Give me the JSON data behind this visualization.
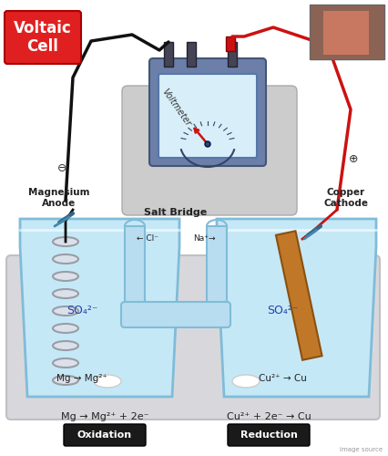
{
  "title": "Voltaic\nCell",
  "title_bg": "#e02020",
  "title_color": "#ffffff",
  "bg_color": "#ffffff",
  "platform_color": "#d8d8dc",
  "platform_edge": "#c0c0c4",
  "left_beaker_fill": "#c5e8f7",
  "right_beaker_fill": "#c5e8f7",
  "beaker_edge": "#80bcd8",
  "salt_bridge_fill": "#b8ddf0",
  "salt_bridge_edge": "#80bcd8",
  "voltmeter_platform": "#cccccc",
  "voltmeter_body": "#6b7fa8",
  "voltmeter_face_bg": "#d8eef8",
  "voltmeter_face_edge": "#5577aa",
  "wire_black": "#111111",
  "wire_red": "#cc1111",
  "copper_color": "#c07828",
  "copper_edge": "#8a5010",
  "mg_coil_fill": "#e0e0e8",
  "mg_coil_edge": "#909098",
  "needle_color": "#cc1111",
  "needle_pivot": "#224488",
  "oxidation_box": "#1a1a1a",
  "reduction_box": "#1a1a1a",
  "text_dark": "#222222",
  "text_blue": "#2244aa",
  "webcam_bg": "#8b6355",
  "image_src_color": "#999999",
  "left_reaction": "Mg → Mg²⁺ + 2e⁻",
  "right_reaction": "Cu²⁺ + 2e⁻ → Cu",
  "oxidation_label": "Oxidation",
  "reduction_label": "Reduction",
  "so4_label": "SO₄²⁻",
  "mg_arrow": "Mg → Mg²⁺",
  "cu_arrow": "Cu²⁺ → Cu",
  "salt_bridge_label": "Salt Bridge",
  "cl_label": "← Cl⁻",
  "na_label": "Na⁺→",
  "voltmeter_label": "Voltmeter",
  "left_elec_label": "Magnesium\nAnode",
  "right_elec_label": "Copper\nCathode",
  "neg_sign": "⊖",
  "pos_sign": "⊕",
  "image_source": "image source"
}
